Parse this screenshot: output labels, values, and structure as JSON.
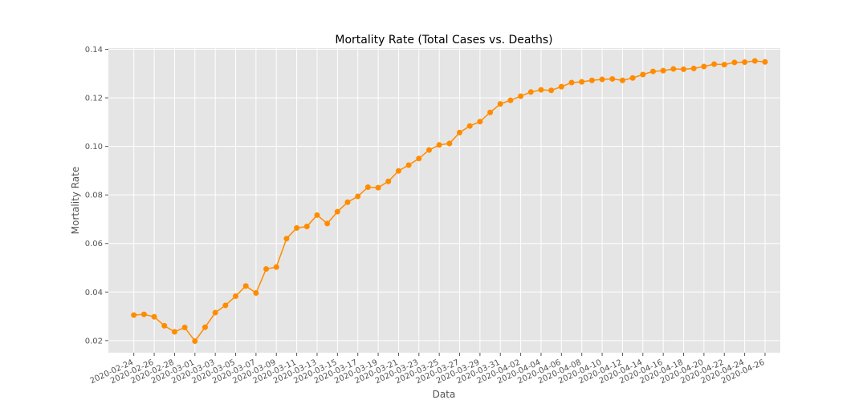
{
  "chart_data": {
    "type": "line",
    "title": "Mortality Rate (Total Cases vs. Deaths)",
    "xlabel": "Data",
    "ylabel": "Mortality Rate",
    "ylim": [
      0.015,
      0.1405
    ],
    "yticks": [
      "0.02",
      "0.04",
      "0.06",
      "0.08",
      "0.10",
      "0.12",
      "0.14"
    ],
    "ytick_values": [
      0.02,
      0.04,
      0.06,
      0.08,
      0.1,
      0.12,
      0.14
    ],
    "xticks": [
      "2020-02-24",
      "2020-02-26",
      "2020-02-28",
      "2020-03-01",
      "2020-03-03",
      "2020-03-05",
      "2020-03-07",
      "2020-03-09",
      "2020-03-11",
      "2020-03-13",
      "2020-03-15",
      "2020-03-17",
      "2020-03-19",
      "2020-03-21",
      "2020-03-23",
      "2020-03-25",
      "2020-03-27",
      "2020-03-29",
      "2020-03-31",
      "2020-04-02",
      "2020-04-04",
      "2020-04-06",
      "2020-04-08",
      "2020-04-10",
      "2020-04-12",
      "2020-04-14",
      "2020-04-16",
      "2020-04-18",
      "2020-04-20",
      "2020-04-22",
      "2020-04-24",
      "2020-04-26"
    ],
    "grid": true,
    "background": "#e5e5e5",
    "grid_color": "#ffffff",
    "series_color": "#ff8c00",
    "x": [
      "2020-02-24",
      "2020-02-25",
      "2020-02-26",
      "2020-02-27",
      "2020-02-28",
      "2020-02-29",
      "2020-03-01",
      "2020-03-02",
      "2020-03-03",
      "2020-03-04",
      "2020-03-05",
      "2020-03-06",
      "2020-03-07",
      "2020-03-08",
      "2020-03-09",
      "2020-03-10",
      "2020-03-11",
      "2020-03-12",
      "2020-03-13",
      "2020-03-14",
      "2020-03-15",
      "2020-03-16",
      "2020-03-17",
      "2020-03-18",
      "2020-03-19",
      "2020-03-20",
      "2020-03-21",
      "2020-03-22",
      "2020-03-23",
      "2020-03-24",
      "2020-03-25",
      "2020-03-26",
      "2020-03-27",
      "2020-03-28",
      "2020-03-29",
      "2020-03-30",
      "2020-03-31",
      "2020-04-01",
      "2020-04-02",
      "2020-04-03",
      "2020-04-04",
      "2020-04-05",
      "2020-04-06",
      "2020-04-07",
      "2020-04-08",
      "2020-04-09",
      "2020-04-10",
      "2020-04-11",
      "2020-04-12",
      "2020-04-13",
      "2020-04-14",
      "2020-04-15",
      "2020-04-16",
      "2020-04-17",
      "2020-04-18",
      "2020-04-19",
      "2020-04-20",
      "2020-04-21",
      "2020-04-22",
      "2020-04-23",
      "2020-04-24",
      "2020-04-25",
      "2020-04-26"
    ],
    "series": [
      {
        "values": [
          0.0305,
          0.0308,
          0.0298,
          0.0261,
          0.0236,
          0.0254,
          0.0198,
          0.0255,
          0.0315,
          0.0345,
          0.0383,
          0.0425,
          0.0396,
          0.0495,
          0.0503,
          0.062,
          0.0664,
          0.067,
          0.0717,
          0.0682,
          0.0731,
          0.077,
          0.0794,
          0.0832,
          0.083,
          0.0856,
          0.0899,
          0.0923,
          0.095,
          0.0985,
          0.1006,
          0.1012,
          0.1057,
          0.1084,
          0.1102,
          0.114,
          0.1175,
          0.119,
          0.1207,
          0.1224,
          0.1233,
          0.1231,
          0.1246,
          0.1263,
          0.1266,
          0.1272,
          0.1276,
          0.1278,
          0.1272,
          0.1282,
          0.1296,
          0.1309,
          0.1312,
          0.1319,
          0.1318,
          0.1321,
          0.1329,
          0.1339,
          0.1337,
          0.1346,
          0.1347,
          0.1352,
          0.1348
        ]
      }
    ]
  }
}
